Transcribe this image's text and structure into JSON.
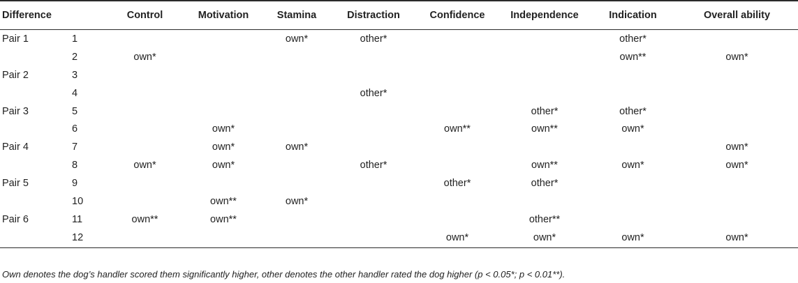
{
  "table": {
    "headers": [
      "Difference",
      "",
      "Control",
      "Motivation",
      "Stamina",
      "Distraction",
      "Confidence",
      "Independence",
      "Indication",
      "Overall ability"
    ],
    "rows": [
      {
        "pair": "Pair 1",
        "num": "1",
        "cells": [
          "",
          "",
          "own*",
          "other*",
          "",
          "",
          "other*",
          ""
        ]
      },
      {
        "pair": "",
        "num": "2",
        "cells": [
          "own*",
          "",
          "",
          "",
          "",
          "",
          "own**",
          "own*"
        ]
      },
      {
        "pair": "Pair 2",
        "num": "3",
        "cells": [
          "",
          "",
          "",
          "",
          "",
          "",
          "",
          ""
        ]
      },
      {
        "pair": "",
        "num": "4",
        "cells": [
          "",
          "",
          "",
          "other*",
          "",
          "",
          "",
          ""
        ]
      },
      {
        "pair": "Pair 3",
        "num": "5",
        "cells": [
          "",
          "",
          "",
          "",
          "",
          "other*",
          "other*",
          ""
        ]
      },
      {
        "pair": "",
        "num": "6",
        "cells": [
          "",
          "own*",
          "",
          "",
          "own**",
          "own**",
          "own*",
          ""
        ]
      },
      {
        "pair": "Pair 4",
        "num": "7",
        "cells": [
          "",
          "own*",
          "own*",
          "",
          "",
          "",
          "",
          "own*"
        ]
      },
      {
        "pair": "",
        "num": "8",
        "cells": [
          "own*",
          "own*",
          "",
          "other*",
          "",
          "own**",
          "own*",
          "own*"
        ]
      },
      {
        "pair": "Pair 5",
        "num": "9",
        "cells": [
          "",
          "",
          "",
          "",
          "other*",
          "other*",
          "",
          ""
        ]
      },
      {
        "pair": "",
        "num": "10",
        "cells": [
          "",
          "own**",
          "own*",
          "",
          "",
          "",
          "",
          ""
        ]
      },
      {
        "pair": "Pair 6",
        "num": "11",
        "cells": [
          "own**",
          "own**",
          "",
          "",
          "",
          "other**",
          "",
          ""
        ]
      },
      {
        "pair": "",
        "num": "12",
        "cells": [
          "",
          "",
          "",
          "",
          "own*",
          "own*",
          "own*",
          "own*"
        ]
      }
    ]
  },
  "footnote": "Own denotes the dog’s handler scored them significantly higher, other denotes the other handler rated the dog higher (p < 0.05*; p < 0.01**)."
}
